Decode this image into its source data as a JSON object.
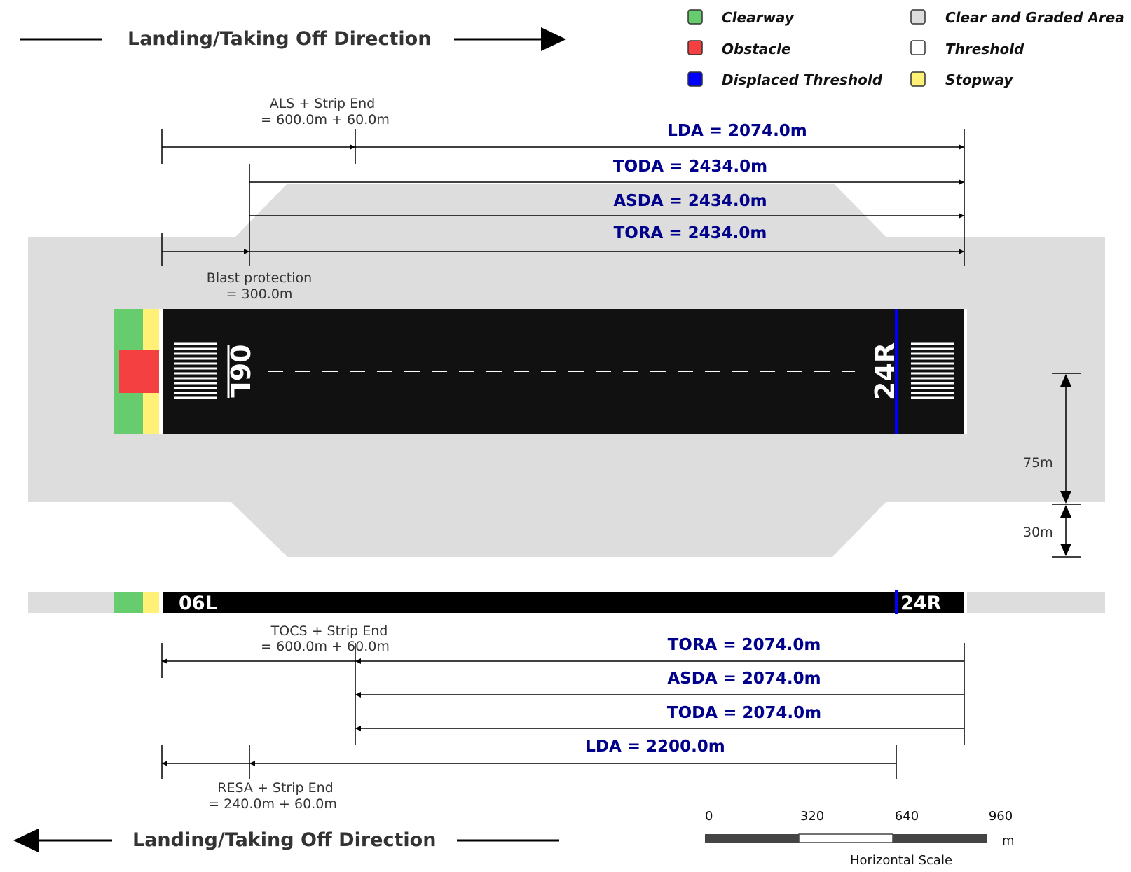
{
  "top_direction": {
    "label": "Landing/Taking Off Direction",
    "arrow": "right"
  },
  "bottom_direction": {
    "label": "Landing/Taking Off Direction",
    "arrow": "left"
  },
  "legend": [
    {
      "label": "Clearway",
      "color": "#66cc6e"
    },
    {
      "label": "Obstacle",
      "color": "#f44040"
    },
    {
      "label": "Displaced Threshold",
      "color": "#0000ff"
    },
    {
      "label": "Clear and Graded Area",
      "color": "#dddddd"
    },
    {
      "label": "Threshold",
      "color": "#ffffff"
    },
    {
      "label": "Stopway",
      "color": "#fff176"
    }
  ],
  "top_dimensions": {
    "als_label": "ALS + Strip End",
    "als_value": "= 600.0m + 60.0m",
    "lda": "LDA = 2074.0m",
    "toda": "TODA = 2434.0m",
    "asda": "ASDA = 2434.0m",
    "tora": "TORA = 2434.0m",
    "blast_label": "Blast protection",
    "blast_value": "= 300.0m"
  },
  "runway": {
    "left_designator": "06L",
    "right_designator": "24R",
    "side_designator_left": "06L",
    "side_designator_right": "24R"
  },
  "vertical_dims": {
    "width_label": "75m",
    "strip_label": "30m"
  },
  "bottom_dimensions": {
    "tocs_label": "TOCS + Strip End",
    "tocs_value": "= 600.0m + 60.0m",
    "tora": "TORA = 2074.0m",
    "asda": "ASDA = 2074.0m",
    "toda": "TODA = 2074.0m",
    "lda": "LDA = 2200.0m",
    "resa_label": "RESA + Strip End",
    "resa_value": "= 240.0m + 60.0m"
  },
  "scale": {
    "ticks": [
      "0",
      "320",
      "640",
      "960"
    ],
    "unit": "m",
    "caption": "Horizontal Scale"
  }
}
